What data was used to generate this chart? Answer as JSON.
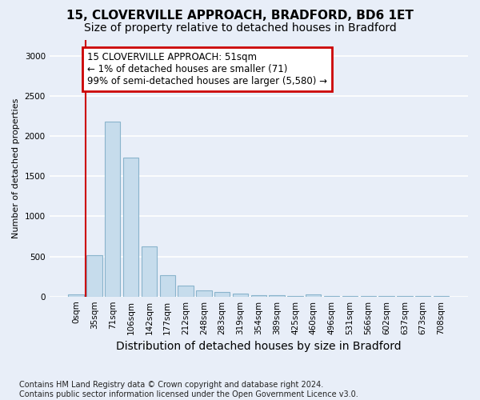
{
  "title_line1": "15, CLOVERVILLE APPROACH, BRADFORD, BD6 1ET",
  "title_line2": "Size of property relative to detached houses in Bradford",
  "xlabel": "Distribution of detached houses by size in Bradford",
  "ylabel": "Number of detached properties",
  "footnote": "Contains HM Land Registry data © Crown copyright and database right 2024.\nContains public sector information licensed under the Open Government Licence v3.0.",
  "bar_labels": [
    "0sqm",
    "35sqm",
    "71sqm",
    "106sqm",
    "142sqm",
    "177sqm",
    "212sqm",
    "248sqm",
    "283sqm",
    "319sqm",
    "354sqm",
    "389sqm",
    "425sqm",
    "460sqm",
    "496sqm",
    "531sqm",
    "566sqm",
    "602sqm",
    "637sqm",
    "673sqm",
    "708sqm"
  ],
  "bar_values": [
    30,
    520,
    2180,
    1730,
    630,
    270,
    140,
    80,
    55,
    35,
    20,
    15,
    10,
    25,
    10,
    5,
    5,
    5,
    5,
    5,
    5
  ],
  "bar_color": "#c6dcec",
  "bar_edge_color": "#8ab4cc",
  "annotation_text": "15 CLOVERVILLE APPROACH: 51sqm\n← 1% of detached houses are smaller (71)\n99% of semi-detached houses are larger (5,580) →",
  "annotation_box_color": "#cc0000",
  "vline_color": "#cc0000",
  "ylim": [
    0,
    3200
  ],
  "yticks": [
    0,
    500,
    1000,
    1500,
    2000,
    2500,
    3000
  ],
  "background_color": "#e8eef8",
  "grid_color": "#ffffff",
  "title1_fontsize": 11,
  "title2_fontsize": 10,
  "xlabel_fontsize": 10,
  "ylabel_fontsize": 8,
  "tick_fontsize": 7.5,
  "annotation_fontsize": 8.5,
  "footnote_fontsize": 7
}
